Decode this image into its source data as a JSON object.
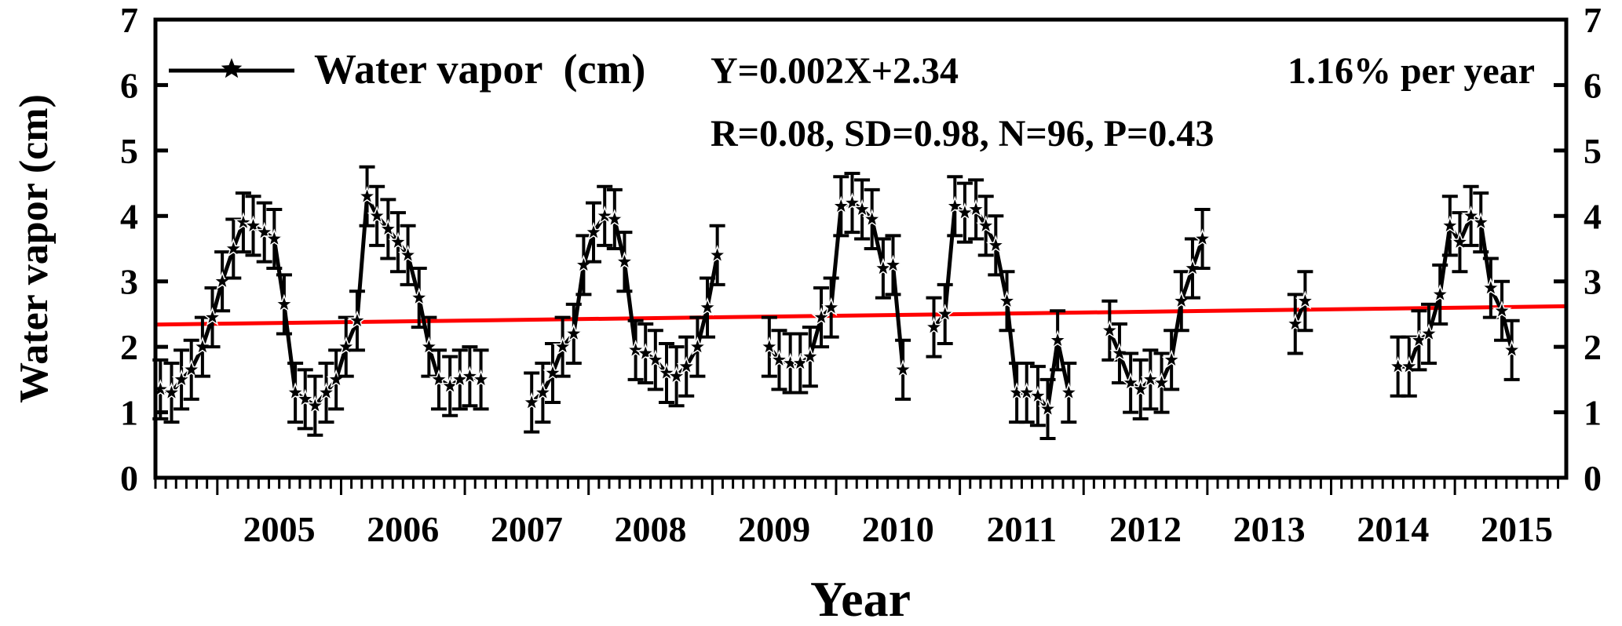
{
  "chart_data": {
    "type": "line",
    "xlabel": "Year",
    "ylabel": "Water vapor (cm)",
    "ylim": [
      0,
      7
    ],
    "xlim": [
      2004.5,
      2015.9
    ],
    "yticks": [
      0,
      1,
      2,
      3,
      4,
      5,
      6,
      7
    ],
    "xtick_labels": [
      "2005",
      "2006",
      "2007",
      "2008",
      "2009",
      "2010",
      "2011",
      "2012",
      "2013",
      "2014",
      "2015"
    ],
    "legend": {
      "label": "Water vapor  (cm)",
      "placement": "top-left"
    },
    "annotations": {
      "equation": "Y=0.002X+2.34",
      "trend": "1.16% per year",
      "stats": "R=0.08, SD=0.98, N=96, P=0.43"
    },
    "trend_line": {
      "x": [
        2004.5,
        2015.9
      ],
      "y": [
        2.34,
        2.62
      ],
      "color": "#ff0000"
    },
    "series": [
      {
        "name": "Water vapor  (cm)",
        "color": "#000000",
        "segments": [
          [
            [
              2004.54,
              1.35
            ],
            [
              2004.63,
              1.3
            ],
            [
              2004.71,
              1.5
            ],
            [
              2004.79,
              1.65
            ],
            [
              2004.88,
              2.0
            ],
            [
              2004.96,
              2.45
            ],
            [
              2005.04,
              3.0
            ],
            [
              2005.13,
              3.5
            ],
            [
              2005.21,
              3.9
            ],
            [
              2005.29,
              3.85
            ],
            [
              2005.38,
              3.75
            ],
            [
              2005.46,
              3.65
            ],
            [
              2005.54,
              2.65
            ],
            [
              2005.63,
              1.3
            ],
            [
              2005.71,
              1.2
            ],
            [
              2005.79,
              1.1
            ],
            [
              2005.88,
              1.3
            ],
            [
              2005.96,
              1.5
            ],
            [
              2006.04,
              2.0
            ],
            [
              2006.13,
              2.4
            ],
            [
              2006.21,
              4.3
            ],
            [
              2006.29,
              4.0
            ],
            [
              2006.38,
              3.8
            ],
            [
              2006.46,
              3.6
            ],
            [
              2006.54,
              3.4
            ],
            [
              2006.63,
              2.75
            ],
            [
              2006.71,
              2.0
            ],
            [
              2006.79,
              1.5
            ],
            [
              2006.88,
              1.4
            ],
            [
              2006.96,
              1.5
            ],
            [
              2007.04,
              1.55
            ],
            [
              2007.13,
              1.5
            ]
          ],
          [
            [
              2007.54,
              1.15
            ],
            [
              2007.63,
              1.3
            ],
            [
              2007.71,
              1.6
            ],
            [
              2007.79,
              2.0
            ],
            [
              2007.88,
              2.2
            ],
            [
              2007.96,
              3.25
            ],
            [
              2008.04,
              3.75
            ],
            [
              2008.13,
              4.0
            ],
            [
              2008.21,
              3.95
            ],
            [
              2008.29,
              3.3
            ],
            [
              2008.38,
              1.95
            ],
            [
              2008.46,
              1.9
            ],
            [
              2008.54,
              1.8
            ],
            [
              2008.63,
              1.6
            ],
            [
              2008.71,
              1.55
            ],
            [
              2008.79,
              1.7
            ],
            [
              2008.88,
              2.0
            ],
            [
              2008.96,
              2.6
            ],
            [
              2009.04,
              3.4
            ]
          ],
          [
            [
              2009.46,
              2.0
            ],
            [
              2009.54,
              1.8
            ],
            [
              2009.63,
              1.75
            ],
            [
              2009.71,
              1.75
            ],
            [
              2009.79,
              1.85
            ],
            [
              2009.88,
              2.45
            ],
            [
              2009.96,
              2.6
            ],
            [
              2010.04,
              4.15
            ],
            [
              2010.13,
              4.2
            ],
            [
              2010.21,
              4.1
            ],
            [
              2010.29,
              3.95
            ],
            [
              2010.38,
              3.2
            ],
            [
              2010.46,
              3.25
            ],
            [
              2010.54,
              1.65
            ]
          ],
          [
            [
              2010.79,
              2.3
            ],
            [
              2010.88,
              2.5
            ],
            [
              2010.96,
              4.15
            ],
            [
              2011.04,
              4.05
            ],
            [
              2011.13,
              4.1
            ],
            [
              2011.21,
              3.85
            ],
            [
              2011.29,
              3.55
            ],
            [
              2011.38,
              2.7
            ],
            [
              2011.46,
              1.3
            ],
            [
              2011.54,
              1.3
            ],
            [
              2011.63,
              1.25
            ],
            [
              2011.71,
              1.05
            ],
            [
              2011.79,
              2.1
            ],
            [
              2011.88,
              1.3
            ]
          ],
          [
            [
              2012.21,
              2.25
            ],
            [
              2012.29,
              1.9
            ],
            [
              2012.38,
              1.45
            ],
            [
              2012.46,
              1.35
            ],
            [
              2012.54,
              1.5
            ],
            [
              2012.63,
              1.45
            ],
            [
              2012.71,
              1.8
            ],
            [
              2012.79,
              2.7
            ],
            [
              2012.88,
              3.2
            ],
            [
              2012.96,
              3.65
            ]
          ],
          [
            [
              2013.71,
              2.35
            ],
            [
              2013.79,
              2.7
            ]
          ],
          [
            [
              2014.54,
              1.7
            ],
            [
              2014.63,
              1.7
            ],
            [
              2014.71,
              2.1
            ],
            [
              2014.79,
              2.2
            ],
            [
              2014.88,
              2.8
            ],
            [
              2014.96,
              3.85
            ],
            [
              2015.04,
              3.6
            ],
            [
              2015.13,
              4.0
            ],
            [
              2015.21,
              3.9
            ],
            [
              2015.29,
              2.9
            ],
            [
              2015.38,
              2.55
            ],
            [
              2015.46,
              1.95
            ]
          ]
        ]
      }
    ]
  }
}
